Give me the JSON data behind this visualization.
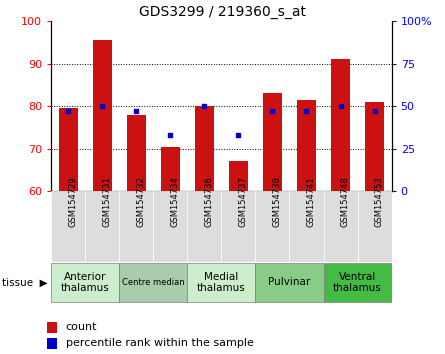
{
  "title": "GDS3299 / 219360_s_at",
  "samples": [
    "GSM154729",
    "GSM154731",
    "GSM154732",
    "GSM154734",
    "GSM154736",
    "GSM154737",
    "GSM154738",
    "GSM154741",
    "GSM154748",
    "GSM154753"
  ],
  "counts": [
    79.5,
    95.5,
    78.0,
    70.5,
    80.0,
    67.0,
    83.0,
    81.5,
    91.0,
    81.0
  ],
  "percentile_ranks": [
    47,
    50,
    47,
    33,
    50,
    33,
    47,
    47,
    50,
    47
  ],
  "ylim_left": [
    60,
    100
  ],
  "ylim_right": [
    0,
    100
  ],
  "yticks_left": [
    60,
    70,
    80,
    90,
    100
  ],
  "yticks_right": [
    0,
    25,
    50,
    75,
    100
  ],
  "ytick_labels_right": [
    "0",
    "25",
    "50",
    "75",
    "100%"
  ],
  "bar_color": "#cc1111",
  "dot_color": "#0000cc",
  "bar_bottom": 60,
  "tissue_groups": [
    {
      "label": "Anterior\nthalamus",
      "start": 0,
      "end": 1,
      "color": "#cceecc"
    },
    {
      "label": "Centre median",
      "start": 2,
      "end": 3,
      "color": "#aaccaa"
    },
    {
      "label": "Medial\nthalamus",
      "start": 4,
      "end": 5,
      "color": "#cceecc"
    },
    {
      "label": "Pulvinar",
      "start": 6,
      "end": 7,
      "color": "#88cc88"
    },
    {
      "label": "Ventral\nthalamus",
      "start": 8,
      "end": 9,
      "color": "#44bb44"
    }
  ],
  "legend_count_label": "count",
  "legend_pct_label": "percentile rank within the sample",
  "background_color": "#ffffff"
}
